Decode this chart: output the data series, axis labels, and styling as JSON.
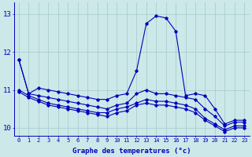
{
  "xlabel": "Graphe des temperatures (°c)",
  "bg_color": "#cce8e8",
  "grid_color": "#aacece",
  "line_color": "#0000bb",
  "xlim": [
    -0.5,
    23.5
  ],
  "ylim": [
    9.8,
    13.3
  ],
  "yticks": [
    10,
    11,
    12,
    13
  ],
  "xticks": [
    0,
    1,
    2,
    3,
    4,
    5,
    6,
    7,
    8,
    9,
    10,
    11,
    12,
    13,
    14,
    15,
    16,
    17,
    18,
    19,
    20,
    21,
    22,
    23
  ],
  "series": [
    [
      11.8,
      10.9,
      11.05,
      11.0,
      10.95,
      10.9,
      10.85,
      10.8,
      10.75,
      10.75,
      10.85,
      10.9,
      11.5,
      12.75,
      12.95,
      12.9,
      12.55,
      10.85,
      10.9,
      10.85,
      10.5,
      10.1,
      10.2,
      10.2
    ],
    [
      11.8,
      10.9,
      10.85,
      10.8,
      10.75,
      10.7,
      10.65,
      10.6,
      10.55,
      10.5,
      10.6,
      10.65,
      10.9,
      11.0,
      10.9,
      10.9,
      10.85,
      10.8,
      10.75,
      10.5,
      10.3,
      10.05,
      10.15,
      10.15
    ],
    [
      11.0,
      10.85,
      10.75,
      10.65,
      10.6,
      10.55,
      10.5,
      10.45,
      10.4,
      10.4,
      10.5,
      10.55,
      10.65,
      10.75,
      10.7,
      10.7,
      10.65,
      10.6,
      10.5,
      10.25,
      10.1,
      9.95,
      10.05,
      10.05
    ],
    [
      10.95,
      10.8,
      10.7,
      10.6,
      10.55,
      10.5,
      10.45,
      10.4,
      10.35,
      10.3,
      10.4,
      10.45,
      10.6,
      10.65,
      10.6,
      10.6,
      10.55,
      10.5,
      10.4,
      10.2,
      10.05,
      9.9,
      10.0,
      10.0
    ]
  ]
}
